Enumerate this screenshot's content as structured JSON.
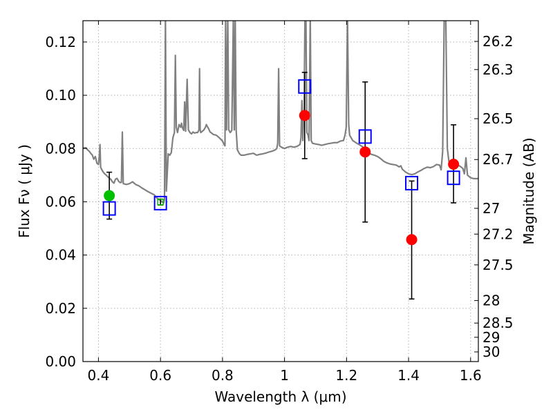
{
  "chart_data": {
    "type": "scatter",
    "xlabel": "Wavelength  λ (μm)",
    "ylabel": "Flux  Fν  ( μJy )",
    "y2label": "Magnitude (AB)",
    "xlim": [
      0.35,
      1.625
    ],
    "ylim": [
      0.0,
      0.128
    ],
    "grid": true,
    "x_ticks": [
      0.4,
      0.6,
      0.8,
      1.0,
      1.2,
      1.4,
      1.6
    ],
    "x_tick_labels": [
      "0.4",
      "0.6",
      "0.8",
      "1",
      "1.2",
      "1.4",
      "1.6"
    ],
    "y_ticks": [
      0.0,
      0.02,
      0.04,
      0.06,
      0.08,
      0.1,
      0.12
    ],
    "y_tick_labels": [
      "0.00",
      "0.02",
      "0.04",
      "0.06",
      "0.08",
      "0.10",
      "0.12"
    ],
    "mag_ticks": [
      "26.2",
      "26.3",
      "26.5",
      "26.7",
      "27",
      "27.2",
      "27.5",
      "28",
      "28.5",
      "29",
      "30"
    ],
    "colors": {
      "spectrum": "#808080",
      "observed": "#ff0000",
      "optical": "#00c000",
      "model": "#0000ff",
      "errorbar": "#000000",
      "grid": "#b0b0b0"
    },
    "spectrum": [
      [
        0.35,
        0.0802
      ],
      [
        0.36,
        0.0803
      ],
      [
        0.365,
        0.0795
      ],
      [
        0.37,
        0.079
      ],
      [
        0.375,
        0.0782
      ],
      [
        0.38,
        0.0776
      ],
      [
        0.385,
        0.076
      ],
      [
        0.39,
        0.077
      ],
      [
        0.395,
        0.0745
      ],
      [
        0.4,
        0.074
      ],
      [
        0.403,
        0.0775
      ],
      [
        0.405,
        0.0815
      ],
      [
        0.407,
        0.073
      ],
      [
        0.41,
        0.0722
      ],
      [
        0.415,
        0.0712
      ],
      [
        0.42,
        0.0705
      ],
      [
        0.425,
        0.07
      ],
      [
        0.43,
        0.0694
      ],
      [
        0.435,
        0.0689
      ],
      [
        0.44,
        0.0684
      ],
      [
        0.445,
        0.0675
      ],
      [
        0.45,
        0.067
      ],
      [
        0.455,
        0.0685
      ],
      [
        0.46,
        0.0688
      ],
      [
        0.465,
        0.0677
      ],
      [
        0.47,
        0.0672
      ],
      [
        0.474,
        0.0673
      ],
      [
        0.477,
        0.0862
      ],
      [
        0.48,
        0.0668
      ],
      [
        0.49,
        0.0665
      ],
      [
        0.5,
        0.0668
      ],
      [
        0.51,
        0.0675
      ],
      [
        0.52,
        0.0665
      ],
      [
        0.53,
        0.066
      ],
      [
        0.54,
        0.0652
      ],
      [
        0.55,
        0.0645
      ],
      [
        0.56,
        0.0638
      ],
      [
        0.57,
        0.0632
      ],
      [
        0.58,
        0.0626
      ],
      [
        0.59,
        0.0612
      ],
      [
        0.6,
        0.0605
      ],
      [
        0.605,
        0.06
      ],
      [
        0.61,
        0.0595
      ],
      [
        0.613,
        0.061
      ],
      [
        0.616,
        0.13
      ],
      [
        0.619,
        0.064
      ],
      [
        0.625,
        0.078
      ],
      [
        0.63,
        0.0775
      ],
      [
        0.635,
        0.0785
      ],
      [
        0.64,
        0.084
      ],
      [
        0.645,
        0.086
      ],
      [
        0.648,
        0.115
      ],
      [
        0.651,
        0.088
      ],
      [
        0.655,
        0.086
      ],
      [
        0.66,
        0.089
      ],
      [
        0.665,
        0.088
      ],
      [
        0.668,
        0.0895
      ],
      [
        0.67,
        0.088
      ],
      [
        0.675,
        0.0868
      ],
      [
        0.678,
        0.0975
      ],
      [
        0.681,
        0.0865
      ],
      [
        0.686,
        0.106
      ],
      [
        0.69,
        0.087
      ],
      [
        0.695,
        0.086
      ],
      [
        0.7,
        0.0855
      ],
      [
        0.705,
        0.0862
      ],
      [
        0.71,
        0.0858
      ],
      [
        0.715,
        0.086
      ],
      [
        0.72,
        0.086
      ],
      [
        0.724,
        0.087
      ],
      [
        0.726,
        0.11
      ],
      [
        0.728,
        0.087
      ],
      [
        0.73,
        0.086
      ],
      [
        0.735,
        0.0865
      ],
      [
        0.74,
        0.087
      ],
      [
        0.745,
        0.088
      ],
      [
        0.748,
        0.089
      ],
      [
        0.75,
        0.0885
      ],
      [
        0.755,
        0.0875
      ],
      [
        0.76,
        0.0862
      ],
      [
        0.765,
        0.0858
      ],
      [
        0.77,
        0.0853
      ],
      [
        0.78,
        0.085
      ],
      [
        0.79,
        0.084
      ],
      [
        0.8,
        0.0828
      ],
      [
        0.805,
        0.0815
      ],
      [
        0.808,
        0.081
      ],
      [
        0.81,
        0.13
      ],
      [
        0.813,
        0.087
      ],
      [
        0.817,
        0.13
      ],
      [
        0.82,
        0.087
      ],
      [
        0.825,
        0.086
      ],
      [
        0.83,
        0.0868
      ],
      [
        0.835,
        0.13
      ],
      [
        0.838,
        0.087
      ],
      [
        0.841,
        0.13
      ],
      [
        0.844,
        0.087
      ],
      [
        0.848,
        0.0795
      ],
      [
        0.855,
        0.078
      ],
      [
        0.86,
        0.0775
      ],
      [
        0.87,
        0.0775
      ],
      [
        0.88,
        0.0778
      ],
      [
        0.89,
        0.078
      ],
      [
        0.9,
        0.0782
      ],
      [
        0.91,
        0.0775
      ],
      [
        0.92,
        0.0778
      ],
      [
        0.93,
        0.078
      ],
      [
        0.94,
        0.0783
      ],
      [
        0.95,
        0.0787
      ],
      [
        0.96,
        0.079
      ],
      [
        0.97,
        0.0795
      ],
      [
        0.975,
        0.08
      ],
      [
        0.978,
        0.082
      ],
      [
        0.981,
        0.11
      ],
      [
        0.984,
        0.081
      ],
      [
        0.99,
        0.0805
      ],
      [
        1.0,
        0.08
      ],
      [
        1.01,
        0.0805
      ],
      [
        1.02,
        0.0808
      ],
      [
        1.03,
        0.0805
      ],
      [
        1.04,
        0.0808
      ],
      [
        1.05,
        0.0815
      ],
      [
        1.053,
        0.084
      ],
      [
        1.056,
        0.098
      ],
      [
        1.059,
        0.083
      ],
      [
        1.063,
        0.095
      ],
      [
        1.066,
        0.13
      ],
      [
        1.069,
        0.13
      ],
      [
        1.072,
        0.086
      ],
      [
        1.076,
        0.085
      ],
      [
        1.079,
        0.083
      ],
      [
        1.083,
        0.13
      ],
      [
        1.086,
        0.083
      ],
      [
        1.09,
        0.082
      ],
      [
        1.1,
        0.0817
      ],
      [
        1.11,
        0.0815
      ],
      [
        1.12,
        0.0812
      ],
      [
        1.13,
        0.0815
      ],
      [
        1.14,
        0.0818
      ],
      [
        1.15,
        0.082
      ],
      [
        1.16,
        0.0822
      ],
      [
        1.17,
        0.0822
      ],
      [
        1.18,
        0.0828
      ],
      [
        1.19,
        0.083
      ],
      [
        1.195,
        0.085
      ],
      [
        1.199,
        0.088
      ],
      [
        1.203,
        0.13
      ],
      [
        1.207,
        0.089
      ],
      [
        1.21,
        0.085
      ],
      [
        1.22,
        0.083
      ],
      [
        1.23,
        0.0822
      ],
      [
        1.24,
        0.0815
      ],
      [
        1.25,
        0.0808
      ],
      [
        1.26,
        0.0798
      ],
      [
        1.27,
        0.0785
      ],
      [
        1.28,
        0.0778
      ],
      [
        1.29,
        0.0775
      ],
      [
        1.3,
        0.077
      ],
      [
        1.31,
        0.0762
      ],
      [
        1.32,
        0.0752
      ],
      [
        1.33,
        0.0746
      ],
      [
        1.34,
        0.0742
      ],
      [
        1.35,
        0.074
      ],
      [
        1.36,
        0.0738
      ],
      [
        1.37,
        0.0731
      ],
      [
        1.375,
        0.0735
      ],
      [
        1.38,
        0.0722
      ],
      [
        1.39,
        0.0712
      ],
      [
        1.4,
        0.0705
      ],
      [
        1.41,
        0.0702
      ],
      [
        1.42,
        0.0705
      ],
      [
        1.43,
        0.0712
      ],
      [
        1.44,
        0.0718
      ],
      [
        1.45,
        0.0725
      ],
      [
        1.46,
        0.073
      ],
      [
        1.47,
        0.0728
      ],
      [
        1.48,
        0.0732
      ],
      [
        1.49,
        0.074
      ],
      [
        1.5,
        0.0738
      ],
      [
        1.505,
        0.072
      ],
      [
        1.51,
        0.079
      ],
      [
        1.515,
        0.13
      ],
      [
        1.52,
        0.13
      ],
      [
        1.525,
        0.08
      ],
      [
        1.53,
        0.0752
      ],
      [
        1.54,
        0.074
      ],
      [
        1.55,
        0.0735
      ],
      [
        1.56,
        0.0738
      ],
      [
        1.57,
        0.073
      ],
      [
        1.575,
        0.0725
      ],
      [
        1.58,
        0.0705
      ],
      [
        1.585,
        0.0765
      ],
      [
        1.59,
        0.07
      ],
      [
        1.6,
        0.069
      ],
      [
        1.61,
        0.0687
      ],
      [
        1.625,
        0.0687
      ]
    ],
    "observed_points": [
      {
        "x": 0.435,
        "y": 0.0623,
        "yerr_low": 0.0088,
        "yerr_high": 0.0088,
        "color": "green"
      },
      {
        "x": 1.065,
        "y": 0.0924,
        "yerr_low": 0.0162,
        "yerr_high": 0.0162,
        "color": "red"
      },
      {
        "x": 1.26,
        "y": 0.0787,
        "yerr_low": 0.0263,
        "yerr_high": 0.0263,
        "color": "red"
      },
      {
        "x": 1.41,
        "y": 0.0458,
        "yerr_low": 0.0223,
        "yerr_high": 0.022,
        "color": "red"
      },
      {
        "x": 1.545,
        "y": 0.0741,
        "yerr_low": 0.0145,
        "yerr_high": 0.0148,
        "color": "red"
      }
    ],
    "optical_point": {
      "x": 0.6,
      "y": 0.0599,
      "yerr_low": 0.0011,
      "yerr_high": 0.0011
    },
    "model_points": [
      {
        "x": 0.435,
        "y": 0.0575
      },
      {
        "x": 0.6,
        "y": 0.0595
      },
      {
        "x": 1.065,
        "y": 0.1033
      },
      {
        "x": 1.26,
        "y": 0.0845
      },
      {
        "x": 1.41,
        "y": 0.067
      },
      {
        "x": 1.545,
        "y": 0.069
      }
    ]
  }
}
